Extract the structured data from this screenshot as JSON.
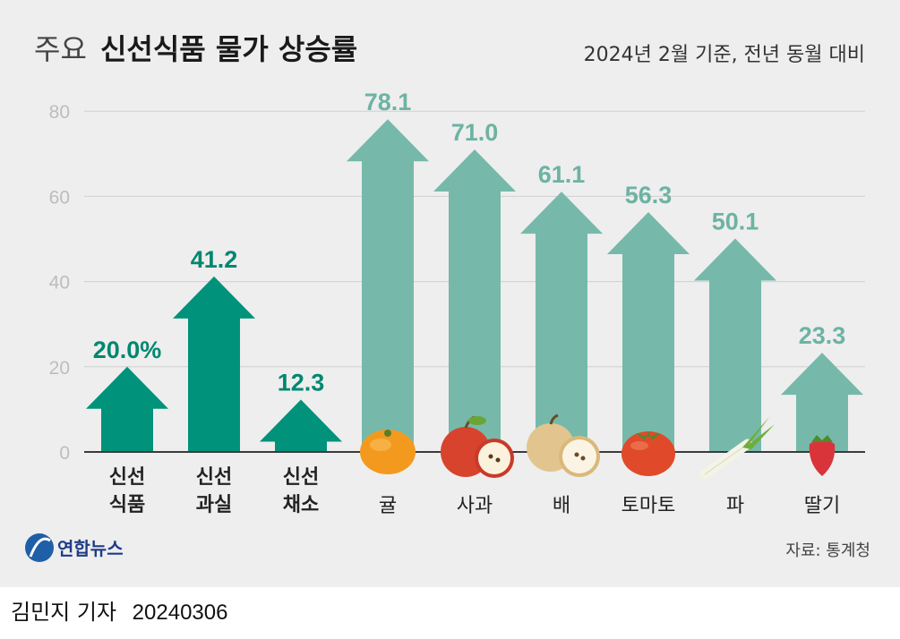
{
  "header": {
    "title_prefix": "주요",
    "title_main": "신선식품 물가 상승률",
    "subtitle": "2024년 2월 기준, 전년 동월 대비"
  },
  "chart_data": {
    "type": "bar",
    "categories": [
      "신선 식품",
      "신선 과실",
      "신선 채소",
      "귤",
      "사과",
      "배",
      "토마토",
      "파",
      "딸기"
    ],
    "category_lines": [
      [
        "신선",
        "식품"
      ],
      [
        "신선",
        "과실"
      ],
      [
        "신선",
        "채소"
      ],
      [
        "귤"
      ],
      [
        "사과"
      ],
      [
        "배"
      ],
      [
        "토마토"
      ],
      [
        "파"
      ],
      [
        "딸기"
      ]
    ],
    "values": [
      20.0,
      41.2,
      12.3,
      78.1,
      71.0,
      61.1,
      56.3,
      50.1,
      23.3
    ],
    "value_labels": [
      "20.0%",
      "41.2",
      "12.3",
      "78.1",
      "71.0",
      "61.1",
      "56.3",
      "50.1",
      "23.3"
    ],
    "ylim": [
      0,
      80
    ],
    "yticks": [
      0,
      20,
      40,
      60,
      80
    ],
    "grid": true,
    "colors": {
      "aggregate": "#00927a",
      "item": "#76b9aa",
      "label_aggregate": "#00876f",
      "label_item": "#6db3a3"
    },
    "item_icons": [
      "",
      "",
      "",
      "tangerine-icon",
      "apple-icon",
      "pear-icon",
      "tomato-icon",
      "green-onion-icon",
      "strawberry-icon"
    ]
  },
  "footer": {
    "logo_text": "연합뉴스",
    "source": "자료: 통계청"
  },
  "byline": {
    "reporter": "김민지 기자",
    "date": "20240306"
  }
}
